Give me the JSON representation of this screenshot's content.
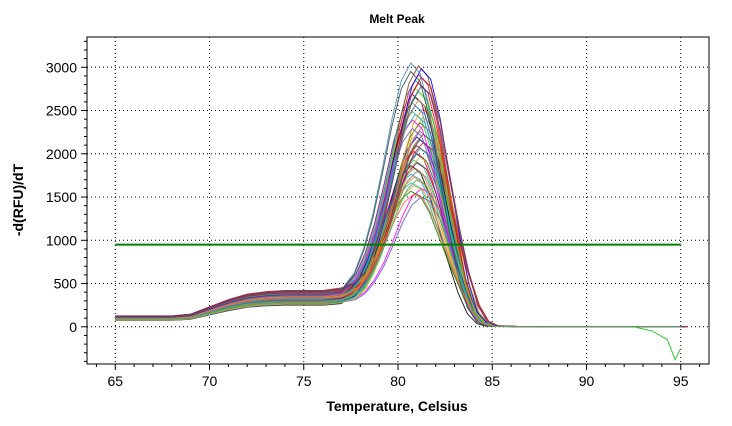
{
  "chart_data": {
    "type": "line",
    "title": "Melt Peak",
    "xlabel": "Temperature, Celsius",
    "ylabel": "-d(RFU)/dT",
    "xlim": [
      63.5,
      96.5
    ],
    "ylim": [
      -430,
      3350
    ],
    "xticks": [
      65,
      70,
      75,
      80,
      85,
      90,
      95
    ],
    "yticks": [
      0,
      500,
      1000,
      1500,
      2000,
      2500,
      3000
    ],
    "xtick_labels": [
      "65",
      "70",
      "75",
      "80",
      "85",
      "90",
      "95"
    ],
    "ytick_labels": [
      "0",
      "500",
      "1000",
      "1500",
      "2000",
      "2500",
      "3000"
    ],
    "grid": "dotted",
    "legend": "none",
    "threshold": {
      "value": 950,
      "x_range": [
        65,
        95
      ],
      "color": "#008000"
    },
    "curve_profile": {
      "x": [
        65,
        66,
        67,
        68,
        69,
        70,
        71,
        72,
        73,
        74,
        75,
        76,
        77,
        77.5,
        78,
        78.5,
        79,
        79.5,
        80,
        80.5,
        81,
        81.5,
        82,
        82.5,
        83,
        83.5,
        84,
        84.5,
        85,
        86,
        88,
        90,
        92,
        93,
        94,
        95
      ],
      "scale": [
        0.3,
        0.3,
        0.3,
        0.3,
        0.35,
        0.55,
        0.75,
        0.9,
        0.97,
        1.0,
        1.0,
        1.0,
        1.08,
        1.25,
        1.6,
        2.3,
        3.3,
        4.6,
        6.0,
        7.1,
        7.6,
        7.3,
        6.2,
        4.6,
        3.0,
        1.6,
        0.6,
        0.15,
        0.03,
        0.01,
        0.0,
        0.0,
        0.0,
        0.0,
        0.0,
        0.0
      ]
    },
    "series_summary": {
      "count": 48,
      "plateau_range": [
        250,
        420
      ],
      "peak_temperature": 81,
      "peak_range": [
        1500,
        3050
      ]
    },
    "outlier_tail": {
      "color": "#33cc33",
      "x": [
        92.5,
        93.5,
        94.3,
        94.7,
        95
      ],
      "y": [
        0,
        -50,
        -150,
        -380,
        -250
      ]
    },
    "palette": [
      "#000000",
      "#ff0000",
      "#0000ff",
      "#008000",
      "#ff8c00",
      "#800080",
      "#00aaaa",
      "#8b4513",
      "#ff00ff",
      "#1e90ff",
      "#32cd32",
      "#b22222",
      "#4682b4",
      "#daa520",
      "#708090",
      "#9acd32",
      "#dc143c",
      "#6a5acd",
      "#20b2aa",
      "#cd853f",
      "#483d8b",
      "#2f4f4f",
      "#ff6347",
      "#3cb371"
    ],
    "colors": {
      "threshold": "#008000",
      "grid": "#000000",
      "plot_background": "#ffffff"
    }
  }
}
